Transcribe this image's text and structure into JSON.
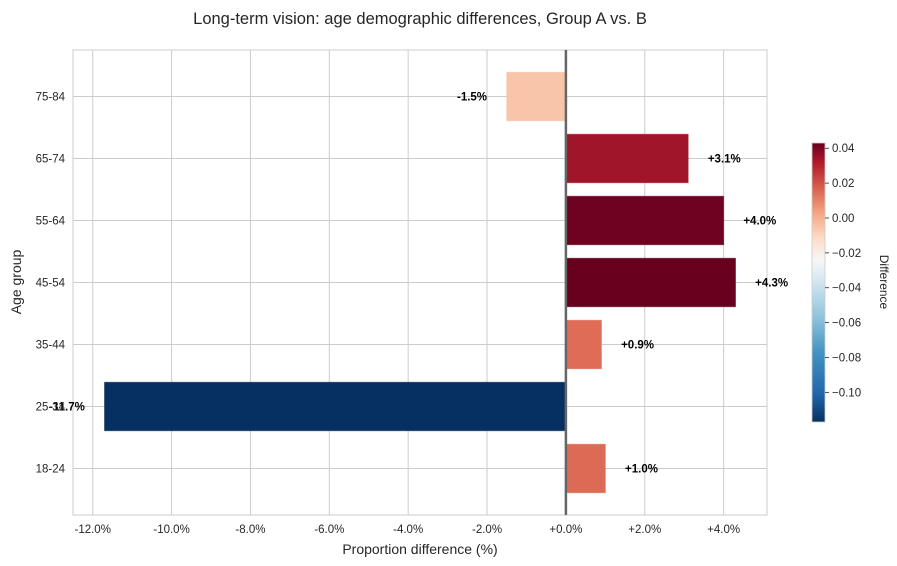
{
  "chart_data": {
    "type": "bar",
    "orientation": "horizontal",
    "title": "Long-term vision: age demographic differences, Group A vs. B",
    "xlabel": "Proportion difference (%)",
    "ylabel": "Age group",
    "categories": [
      "18-24",
      "25-34",
      "35-44",
      "45-54",
      "55-64",
      "65-74",
      "75-84"
    ],
    "values": [
      1.0,
      -11.7,
      0.9,
      4.3,
      4.0,
      3.1,
      -1.5
    ],
    "value_labels": [
      "+1.0%",
      "-11.7%",
      "+0.9%",
      "+4.3%",
      "+4.0%",
      "+3.1%",
      "-1.5%"
    ],
    "xlim": [
      -12.5,
      5.1
    ],
    "xticks": [
      -12,
      -10,
      -8,
      -6,
      -4,
      -2,
      0,
      2,
      4
    ],
    "xtick_labels": [
      "-12.0%",
      "-10.0%",
      "-8.0%",
      "-6.0%",
      "-4.0%",
      "-2.0%",
      "+0.0%",
      "+2.0%",
      "+4.0%"
    ],
    "grid": true,
    "zero_line": true,
    "colormap": "RdBu_r",
    "colorbar": {
      "label": "Difference",
      "range": [
        -0.117,
        0.043
      ],
      "ticks": [
        0.04,
        0.02,
        0.0,
        -0.02,
        -0.04,
        -0.06,
        -0.08,
        -0.1
      ],
      "tick_labels": [
        "0.04",
        "0.02",
        "0.00",
        "−0.02",
        "−0.04",
        "−0.06",
        "−0.08",
        "−0.10"
      ],
      "placement": "right"
    },
    "bar_colors": [
      "#dc6b55",
      "#053061",
      "#de6c56",
      "#67001f",
      "#6f0221",
      "#a1152b",
      "#f8c5a9"
    ]
  }
}
